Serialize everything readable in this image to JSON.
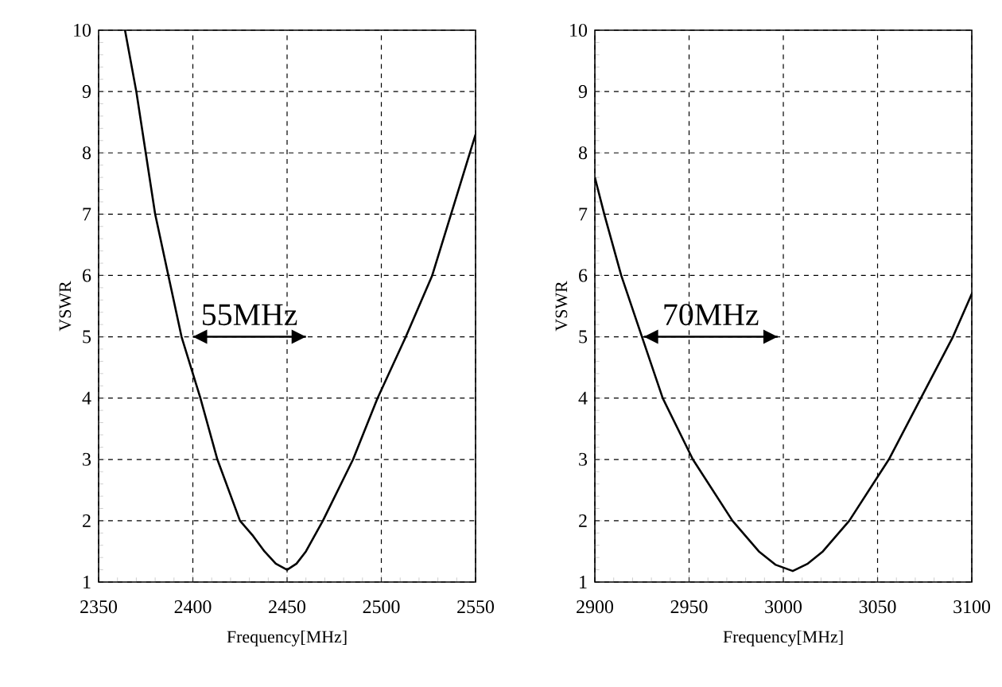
{
  "chart_data": [
    {
      "type": "line",
      "xlabel": "Frequency[MHz]",
      "ylabel": "VSWR",
      "xlim": [
        2350,
        2550
      ],
      "xticks": [
        2350,
        2400,
        2450,
        2500,
        2550
      ],
      "ylim": [
        1,
        10
      ],
      "yticks": [
        1,
        2,
        3,
        4,
        5,
        6,
        7,
        8,
        9,
        10
      ],
      "grid": true,
      "marker": "none",
      "line_style": "solid",
      "series": [
        {
          "color": "#000000",
          "x": [
            2364,
            2370,
            2375,
            2380,
            2387,
            2394,
            2404,
            2413,
            2425,
            2432,
            2438,
            2444,
            2450,
            2455,
            2460,
            2469,
            2485,
            2498,
            2513,
            2527,
            2537,
            2547,
            2550
          ],
          "values": [
            10,
            9,
            8,
            7,
            6,
            5,
            4,
            3,
            2,
            1.75,
            1.5,
            1.3,
            1.2,
            1.3,
            1.5,
            2,
            3,
            4,
            5,
            6,
            7,
            8,
            8.3
          ]
        },
        {
          "color": "#000000",
          "x": [
            2400,
            2460
          ],
          "values": [
            5,
            5
          ]
        }
      ],
      "annotations": [
        "55MHz"
      ]
    },
    {
      "type": "line",
      "xlabel": "Frequency[MHz]",
      "ylabel": "VSWR",
      "xlim": [
        2900,
        3100
      ],
      "xticks": [
        2900,
        2950,
        3000,
        3050,
        3100
      ],
      "ylim": [
        1,
        10
      ],
      "yticks": [
        1,
        2,
        3,
        4,
        5,
        6,
        7,
        8,
        9,
        10
      ],
      "grid": true,
      "marker": "none",
      "line_style": "solid",
      "series": [
        {
          "color": "#000000",
          "x": [
            2900,
            2905,
            2914,
            2925,
            2936,
            2952,
            2973,
            2987,
            2996,
            3005,
            3013,
            3021,
            3035,
            3056,
            3073,
            3090,
            3100
          ],
          "values": [
            7.6,
            7,
            6,
            5,
            4,
            3,
            2,
            1.5,
            1.28,
            1.18,
            1.3,
            1.5,
            2,
            3,
            4,
            5,
            5.7
          ]
        },
        {
          "color": "#000000",
          "x": [
            2926,
            2997
          ],
          "values": [
            5,
            5
          ]
        }
      ],
      "annotations": [
        "70MHz"
      ]
    }
  ]
}
